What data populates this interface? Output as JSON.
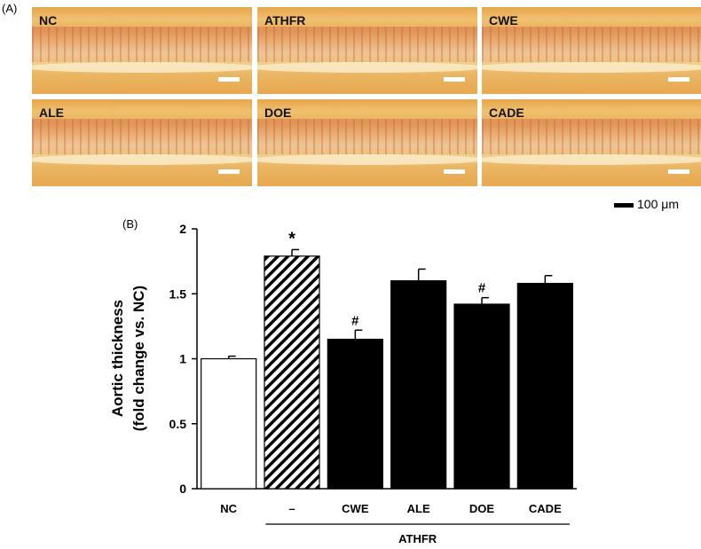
{
  "panelA": {
    "label": "(A)",
    "tiles": [
      "NC",
      "ATHFR",
      "CWE",
      "ALE",
      "DOE",
      "CADE"
    ],
    "scale_bar_label": "100 μm"
  },
  "panelB": {
    "label": "(B)"
  },
  "chart_data": {
    "type": "bar",
    "categories": [
      "NC",
      "–",
      "CWE",
      "ALE",
      "DOE",
      "CADE"
    ],
    "values": [
      1.0,
      1.79,
      1.15,
      1.6,
      1.42,
      1.58
    ],
    "errors": [
      0.02,
      0.05,
      0.07,
      0.09,
      0.05,
      0.06
    ],
    "markers": [
      "",
      "*",
      "#",
      "",
      "#",
      ""
    ],
    "ylabel_lines": [
      "Aortic thickness",
      "(fold change vs. NC)"
    ],
    "xlabel": "",
    "group_label": "ATHFR",
    "ylim": [
      0,
      2
    ],
    "yticks": [
      0,
      0.5,
      1,
      1.5,
      2
    ],
    "ytick_labels": [
      "0",
      "0.5",
      "1",
      "1.5",
      "2"
    ],
    "fills": [
      "white",
      "hatched",
      "#000000",
      "#000000",
      "#000000",
      "#000000"
    ],
    "grid": false
  }
}
